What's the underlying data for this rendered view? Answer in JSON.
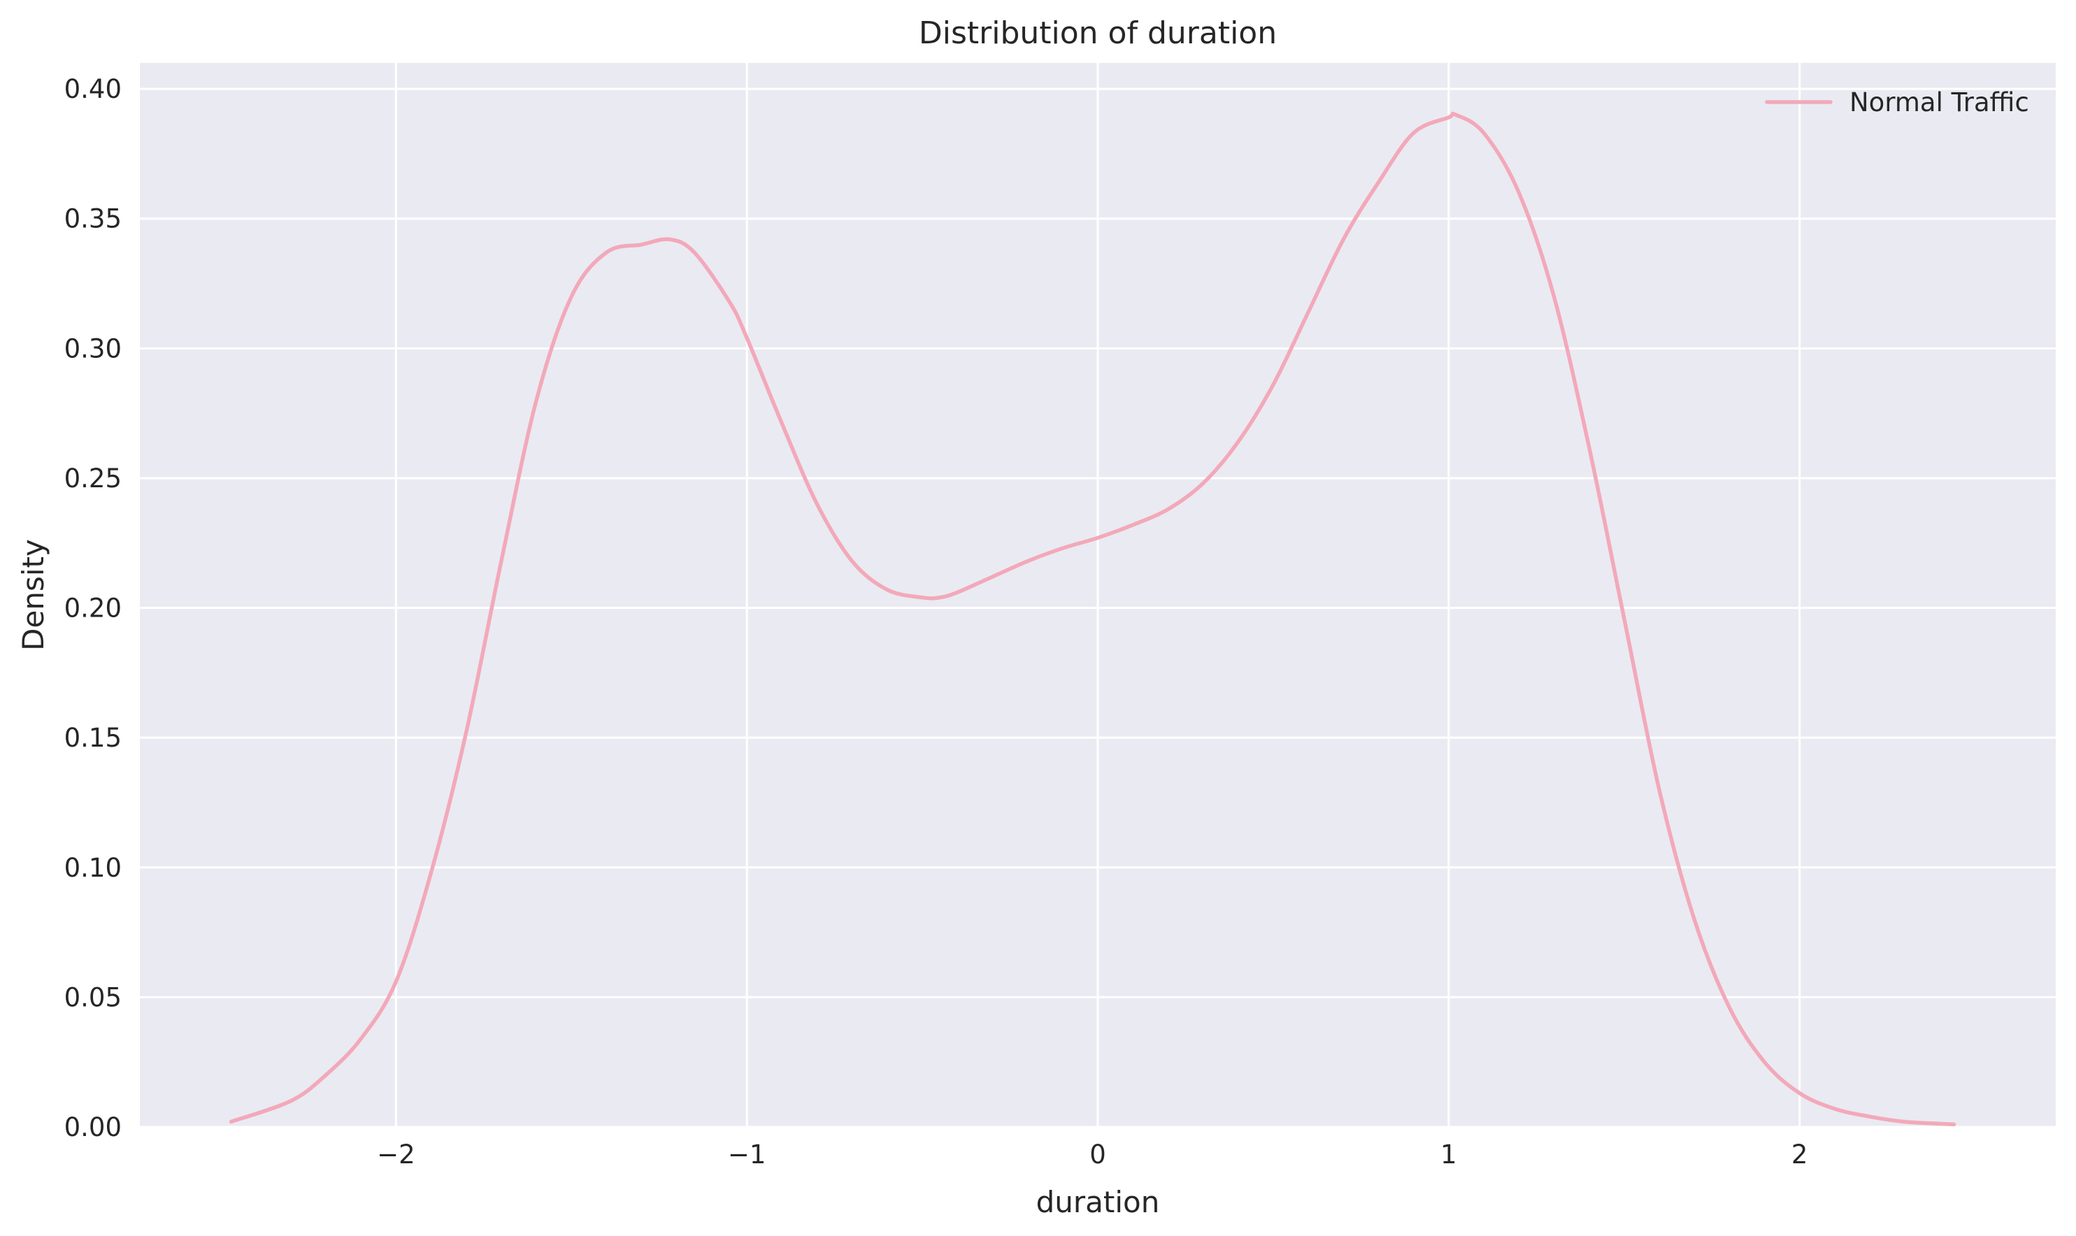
{
  "chart_data": {
    "type": "line",
    "title": "Distribution of duration",
    "xlabel": "duration",
    "ylabel": "Density",
    "xlim": [
      -2.73,
      2.73
    ],
    "ylim": [
      0.0,
      0.41
    ],
    "x_ticks": [
      -2,
      -1,
      0,
      1,
      2
    ],
    "x_tick_labels": [
      "−2",
      "−1",
      "0",
      "1",
      "2"
    ],
    "y_ticks": [
      0.0,
      0.05,
      0.1,
      0.15,
      0.2,
      0.25,
      0.3,
      0.35,
      0.4
    ],
    "y_tick_labels": [
      "0.00",
      "0.05",
      "0.10",
      "0.15",
      "0.20",
      "0.25",
      "0.30",
      "0.35",
      "0.40"
    ],
    "grid": true,
    "legend_position": "top-right",
    "series": [
      {
        "name": "Normal Traffic",
        "color": "#f2a9b9",
        "x": [
          -2.47,
          -2.3,
          -2.2,
          -2.1,
          -2.0,
          -1.9,
          -1.8,
          -1.7,
          -1.6,
          -1.5,
          -1.4,
          -1.3,
          -1.22,
          -1.15,
          -1.05,
          -1.0,
          -0.9,
          -0.8,
          -0.7,
          -0.6,
          -0.5,
          -0.45,
          -0.4,
          -0.3,
          -0.2,
          -0.1,
          0.0,
          0.1,
          0.2,
          0.3,
          0.4,
          0.5,
          0.6,
          0.7,
          0.8,
          0.9,
          1.0,
          1.02,
          1.1,
          1.2,
          1.3,
          1.4,
          1.5,
          1.6,
          1.7,
          1.8,
          1.9,
          2.0,
          2.1,
          2.2,
          2.3,
          2.44
        ],
        "y": [
          0.002,
          0.01,
          0.02,
          0.034,
          0.056,
          0.098,
          0.152,
          0.218,
          0.28,
          0.32,
          0.337,
          0.34,
          0.342,
          0.337,
          0.318,
          0.304,
          0.271,
          0.24,
          0.218,
          0.207,
          0.204,
          0.204,
          0.206,
          0.212,
          0.218,
          0.223,
          0.227,
          0.232,
          0.238,
          0.248,
          0.264,
          0.286,
          0.314,
          0.342,
          0.364,
          0.383,
          0.389,
          0.39,
          0.383,
          0.36,
          0.32,
          0.262,
          0.196,
          0.13,
          0.08,
          0.046,
          0.025,
          0.013,
          0.007,
          0.004,
          0.002,
          0.001
        ]
      }
    ]
  }
}
